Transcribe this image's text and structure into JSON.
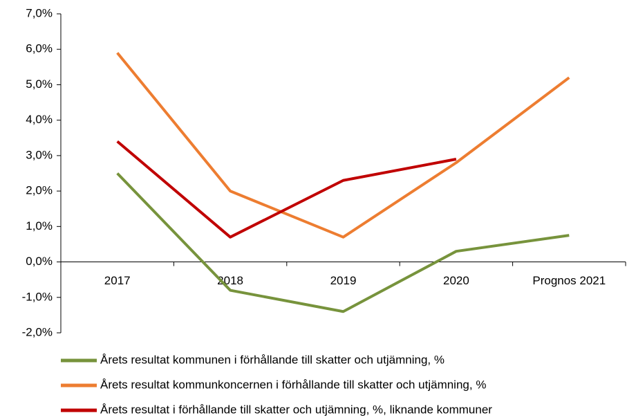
{
  "chart_data": {
    "type": "line",
    "categories": [
      "2017",
      "2018",
      "2019",
      "2020",
      "Prognos 2021"
    ],
    "series": [
      {
        "name": "Årets resultat kommunen i förhållande till skatter och utjämning, %",
        "color": "#77933c",
        "values": [
          2.5,
          -0.8,
          -1.4,
          0.3,
          0.75
        ]
      },
      {
        "name": "Årets resultat kommunkoncernen i förhållande till skatter och utjämning, %",
        "color": "#ed7d31",
        "values": [
          5.9,
          2.0,
          0.7,
          2.8,
          5.2
        ]
      },
      {
        "name": "Årets resultat i förhållande till skatter och utjämning, %, liknande kommuner",
        "color": "#c00000",
        "values": [
          3.4,
          0.7,
          2.3,
          2.9,
          null
        ]
      }
    ],
    "ylim": [
      -2,
      7
    ],
    "yticks": [
      {
        "value": -2,
        "label": "-2,0%"
      },
      {
        "value": -1,
        "label": "-1,0%"
      },
      {
        "value": 0,
        "label": "0,0%"
      },
      {
        "value": 1,
        "label": "1,0%"
      },
      {
        "value": 2,
        "label": "2,0%"
      },
      {
        "value": 3,
        "label": "3,0%"
      },
      {
        "value": 4,
        "label": "4,0%"
      },
      {
        "value": 5,
        "label": "5,0%"
      },
      {
        "value": 6,
        "label": "6,0%"
      },
      {
        "value": 7,
        "label": "7,0%"
      }
    ],
    "grid": false
  }
}
